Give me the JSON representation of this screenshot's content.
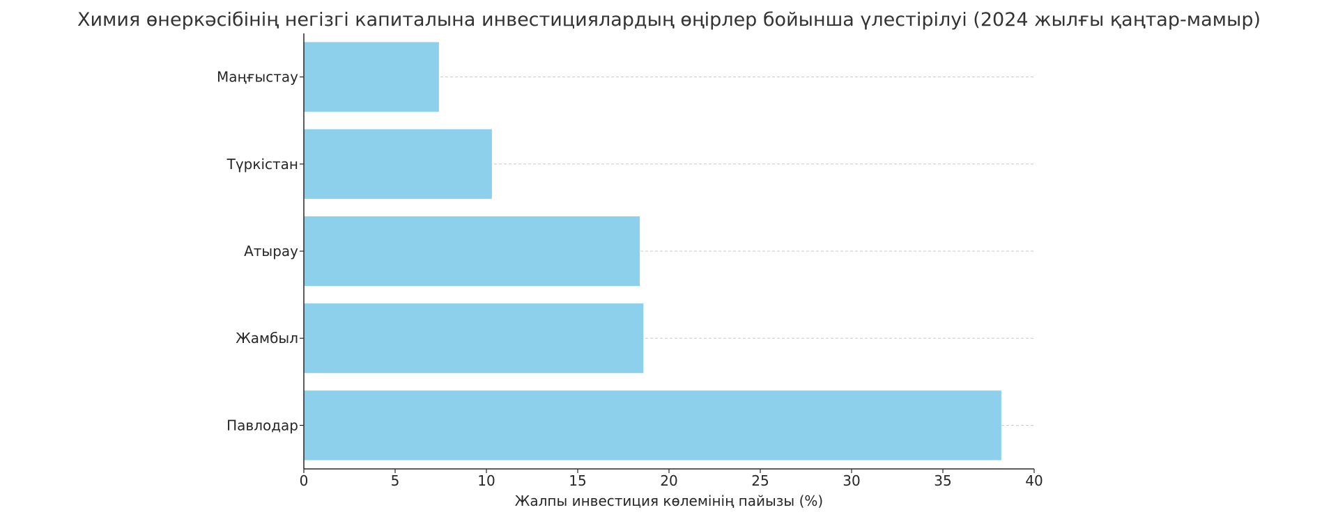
{
  "chart_data": {
    "type": "bar",
    "orientation": "horizontal",
    "title": "Химия өнеркәсібінің негізгі капиталына инвестициялардың өңірлер бойынша үлестірілуі (2024 жылғы қаңтар-мамыр)",
    "xlabel": "Жалпы инвестиция көлемінің пайызы (%)",
    "ylabel": "",
    "categories": [
      "Маңғыстау",
      "Түркістан",
      "Атырау",
      "Жамбыл",
      "Павлодар"
    ],
    "values": [
      7.4,
      10.3,
      18.4,
      18.6,
      38.2
    ],
    "xlim": [
      0,
      40
    ],
    "xticks": [
      "0",
      "5",
      "10",
      "15",
      "20",
      "25",
      "30",
      "35",
      "40"
    ],
    "grid": "dashed horizontal lines at each category",
    "bar_color": "#87CEEB"
  }
}
